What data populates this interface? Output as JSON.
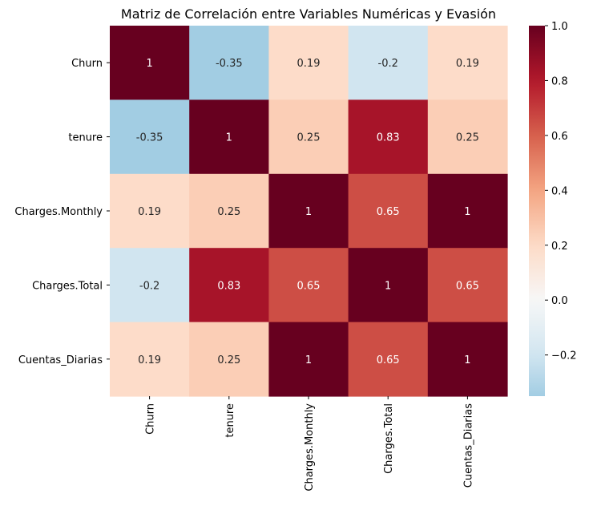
{
  "chart_data": {
    "type": "heatmap",
    "title": "Matriz de Correlación entre Variables Numéricas y Evasión",
    "rows": [
      "Churn",
      "tenure",
      "Charges.Monthly",
      "Charges.Total",
      "Cuentas_Diarias"
    ],
    "columns": [
      "Churn",
      "tenure",
      "Charges.Monthly",
      "Charges.Total",
      "Cuentas_Diarias"
    ],
    "values": [
      [
        1,
        -0.35,
        0.19,
        -0.2,
        0.19
      ],
      [
        -0.35,
        1,
        0.25,
        0.83,
        0.25
      ],
      [
        0.19,
        0.25,
        1,
        0.65,
        1
      ],
      [
        -0.2,
        0.83,
        0.65,
        1,
        0.65
      ],
      [
        0.19,
        0.25,
        1,
        0.65,
        1
      ]
    ],
    "value_labels": [
      [
        "1",
        "-0.35",
        "0.19",
        "-0.2",
        "0.19"
      ],
      [
        "-0.35",
        "1",
        "0.25",
        "0.83",
        "0.25"
      ],
      [
        "0.19",
        "0.25",
        "1",
        "0.65",
        "1"
      ],
      [
        "-0.2",
        "0.83",
        "0.65",
        "1",
        "0.65"
      ],
      [
        "0.19",
        "0.25",
        "1",
        "0.65",
        "1"
      ]
    ],
    "colormap": "RdBu_r",
    "center": 0,
    "vrange": [
      -0.35,
      1
    ],
    "colorbar": {
      "ticks": [
        1.0,
        0.8,
        0.6,
        0.4,
        0.2,
        0.0,
        -0.2
      ],
      "tick_labels": [
        "1.0",
        "0.8",
        "0.6",
        "0.4",
        "0.2",
        "0.0",
        "−0.2"
      ]
    }
  }
}
